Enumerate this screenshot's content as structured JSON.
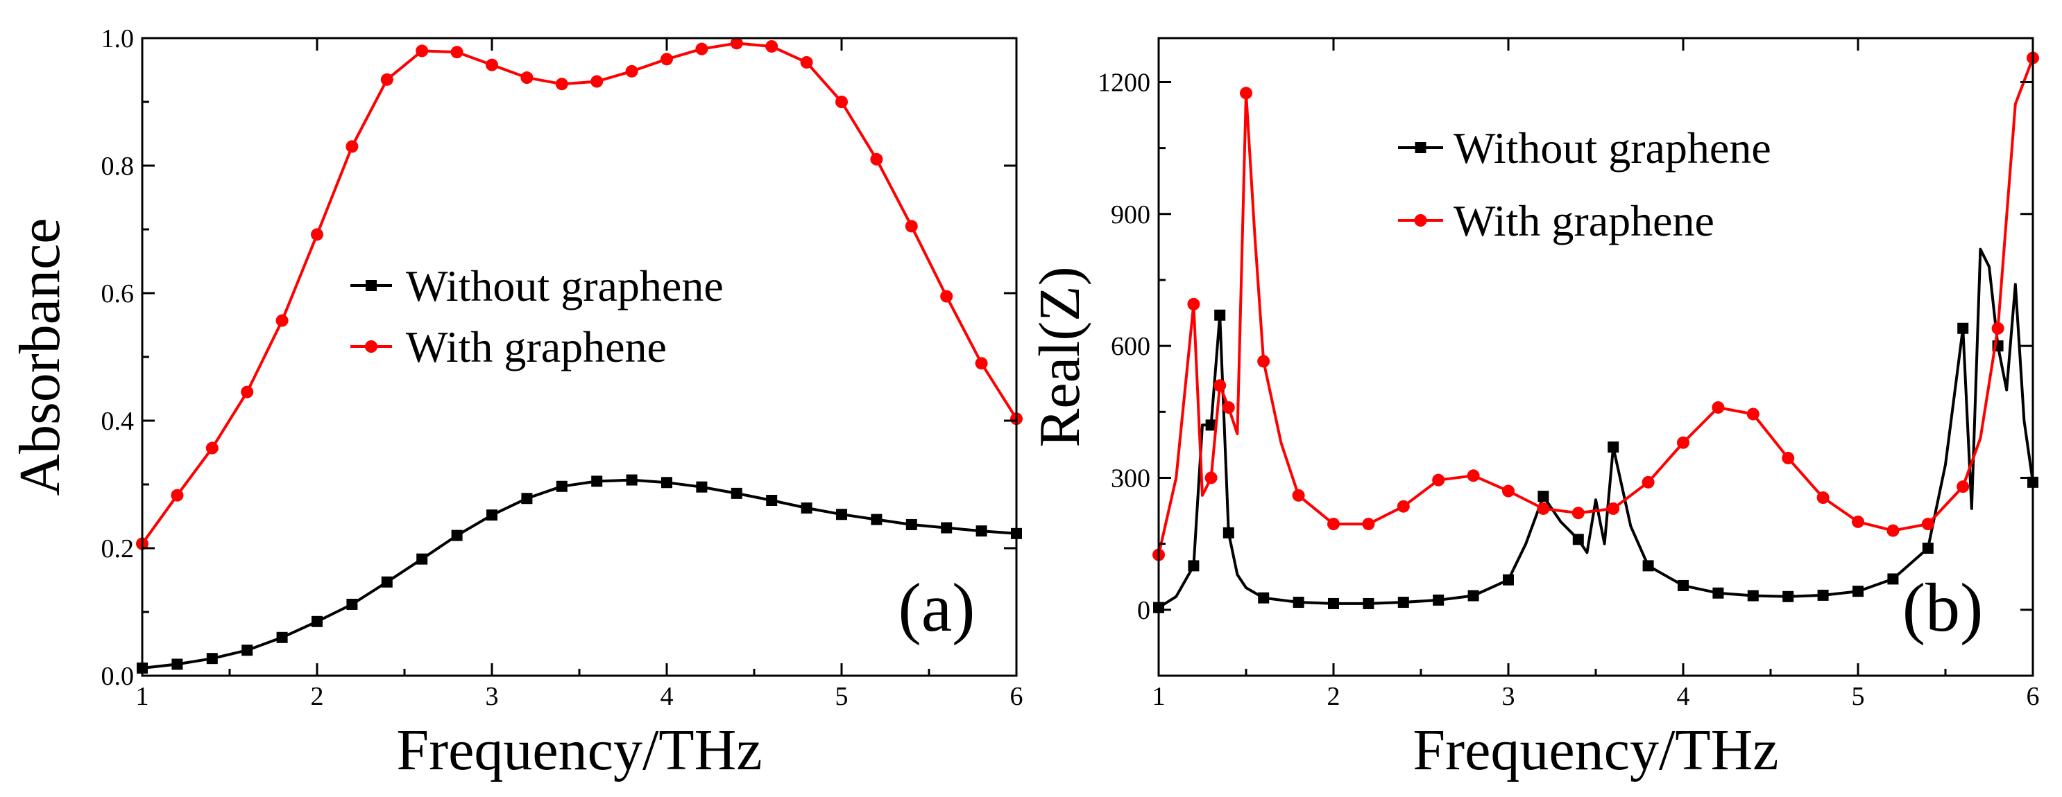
{
  "chart_data": [
    {
      "type": "line",
      "panel_label": "(a)",
      "xlabel": "Frequency/THz",
      "ylabel": "Absorbance",
      "xlim": [
        1,
        6
      ],
      "ylim": [
        0,
        1
      ],
      "xticks": [
        1,
        2,
        3,
        4,
        5,
        6
      ],
      "yticks": [
        0.0,
        0.2,
        0.4,
        0.6,
        0.8,
        1.0
      ],
      "ytick_labels": [
        "0.0",
        "0.2",
        "0.4",
        "0.6",
        "0.8",
        "1.0"
      ],
      "legend_position": "center",
      "series": [
        {
          "name": "Without graphene",
          "color": "#000000",
          "marker": "square",
          "x": [
            1.0,
            1.2,
            1.4,
            1.6,
            1.8,
            2.0,
            2.2,
            2.4,
            2.6,
            2.8,
            3.0,
            3.2,
            3.4,
            3.6,
            3.8,
            4.0,
            4.2,
            4.4,
            4.6,
            4.8,
            5.0,
            5.2,
            5.4,
            5.6,
            5.8,
            6.0
          ],
          "y": [
            0.012,
            0.018,
            0.027,
            0.04,
            0.06,
            0.085,
            0.112,
            0.147,
            0.183,
            0.22,
            0.252,
            0.278,
            0.297,
            0.305,
            0.307,
            0.303,
            0.296,
            0.286,
            0.275,
            0.263,
            0.253,
            0.245,
            0.237,
            0.232,
            0.227,
            0.223
          ]
        },
        {
          "name": "With graphene",
          "color": "#ff0000",
          "marker": "circle",
          "x": [
            1.0,
            1.2,
            1.4,
            1.6,
            1.8,
            2.0,
            2.2,
            2.4,
            2.6,
            2.8,
            3.0,
            3.2,
            3.4,
            3.6,
            3.8,
            4.0,
            4.2,
            4.4,
            4.6,
            4.8,
            5.0,
            5.2,
            5.4,
            5.6,
            5.8,
            6.0
          ],
          "y": [
            0.207,
            0.283,
            0.357,
            0.445,
            0.557,
            0.692,
            0.83,
            0.935,
            0.98,
            0.978,
            0.958,
            0.938,
            0.928,
            0.932,
            0.948,
            0.967,
            0.983,
            0.992,
            0.987,
            0.962,
            0.9,
            0.81,
            0.705,
            0.595,
            0.49,
            0.403
          ]
        }
      ]
    },
    {
      "type": "line",
      "panel_label": "(b)",
      "xlabel": "Frequency/THz",
      "ylabel": "Real(Z)",
      "xlim": [
        1,
        6
      ],
      "ylim": [
        -150,
        1300
      ],
      "xticks": [
        1,
        2,
        3,
        4,
        5,
        6
      ],
      "yticks": [
        0,
        300,
        600,
        900,
        1200
      ],
      "ytick_labels": [
        "0",
        "300",
        "600",
        "900",
        "1200"
      ],
      "legend_position": "top-center",
      "series": [
        {
          "name": "Without graphene",
          "color": "#000000",
          "marker": "square",
          "x": [
            1.0,
            1.1,
            1.2,
            1.25,
            1.3,
            1.35,
            1.4,
            1.45,
            1.5,
            1.6,
            1.8,
            2.0,
            2.2,
            2.4,
            2.6,
            2.8,
            3.0,
            3.1,
            3.2,
            3.3,
            3.4,
            3.45,
            3.5,
            3.55,
            3.6,
            3.7,
            3.8,
            4.0,
            4.2,
            4.4,
            4.6,
            4.8,
            5.0,
            5.2,
            5.4,
            5.5,
            5.6,
            5.65,
            5.7,
            5.75,
            5.8,
            5.85,
            5.9,
            5.95,
            6.0
          ],
          "y": [
            5,
            30,
            100,
            420,
            420,
            670,
            175,
            80,
            50,
            27,
            17,
            14,
            14,
            17,
            22,
            32,
            68,
            150,
            258,
            200,
            160,
            130,
            250,
            150,
            370,
            190,
            100,
            55,
            38,
            32,
            30,
            33,
            42,
            70,
            140,
            330,
            640,
            230,
            820,
            780,
            600,
            500,
            740,
            430,
            290
          ],
          "marker_x": [
            1.0,
            1.2,
            1.3,
            1.35,
            1.4,
            1.6,
            1.8,
            2.0,
            2.2,
            2.4,
            2.6,
            2.8,
            3.0,
            3.2,
            3.4,
            3.6,
            3.8,
            4.0,
            4.2,
            4.4,
            4.6,
            4.8,
            5.0,
            5.2,
            5.4,
            5.6,
            5.8,
            6.0
          ]
        },
        {
          "name": "With graphene",
          "color": "#ff0000",
          "marker": "circle",
          "x": [
            1.0,
            1.1,
            1.2,
            1.25,
            1.3,
            1.35,
            1.4,
            1.45,
            1.5,
            1.55,
            1.6,
            1.7,
            1.8,
            2.0,
            2.2,
            2.4,
            2.6,
            2.8,
            3.0,
            3.2,
            3.4,
            3.6,
            3.8,
            4.0,
            4.2,
            4.4,
            4.6,
            4.8,
            5.0,
            5.2,
            5.4,
            5.6,
            5.7,
            5.8,
            5.9,
            6.0
          ],
          "y": [
            125,
            300,
            695,
            260,
            300,
            510,
            460,
            400,
            1175,
            850,
            565,
            380,
            260,
            195,
            195,
            235,
            295,
            305,
            270,
            230,
            220,
            230,
            290,
            380,
            460,
            445,
            345,
            255,
            200,
            180,
            195,
            280,
            390,
            640,
            1150,
            1255
          ],
          "marker_x": [
            1.0,
            1.2,
            1.3,
            1.35,
            1.4,
            1.5,
            1.6,
            1.8,
            2.0,
            2.2,
            2.4,
            2.6,
            2.8,
            3.0,
            3.2,
            3.4,
            3.6,
            3.8,
            4.0,
            4.2,
            4.4,
            4.6,
            4.8,
            5.0,
            5.2,
            5.4,
            5.6,
            5.8,
            6.0
          ]
        }
      ]
    }
  ]
}
